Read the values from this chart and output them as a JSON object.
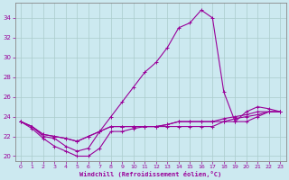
{
  "xlabel": "Windchill (Refroidissement éolien,°C)",
  "background_color": "#cce9f0",
  "line_color": "#990099",
  "grid_color": "#b8d8e0",
  "x_hours": [
    0,
    1,
    2,
    3,
    4,
    5,
    6,
    7,
    8,
    9,
    10,
    11,
    12,
    13,
    14,
    15,
    16,
    17,
    18,
    19,
    20,
    21,
    22,
    23
  ],
  "curve1": [
    23.5,
    23.0,
    22.0,
    21.8,
    21.0,
    20.5,
    20.8,
    22.5,
    24.0,
    25.5,
    27.0,
    28.5,
    29.5,
    31.0,
    33.0,
    33.5,
    34.8,
    34.0,
    26.5,
    23.5,
    24.5,
    25.0,
    24.8,
    24.5
  ],
  "curve2": [
    23.5,
    23.0,
    22.2,
    22.0,
    21.8,
    21.5,
    22.0,
    22.5,
    23.0,
    23.0,
    23.0,
    23.0,
    23.0,
    23.2,
    23.5,
    23.5,
    23.5,
    23.5,
    23.5,
    23.8,
    24.0,
    24.2,
    24.5,
    24.5
  ],
  "curve3": [
    23.5,
    23.0,
    22.2,
    22.0,
    21.8,
    21.5,
    22.0,
    22.5,
    23.0,
    23.0,
    23.0,
    23.0,
    23.0,
    23.2,
    23.5,
    23.5,
    23.5,
    23.5,
    23.8,
    24.0,
    24.2,
    24.5,
    24.5,
    24.5
  ],
  "curve4": [
    23.5,
    22.8,
    21.8,
    21.0,
    20.5,
    20.0,
    20.0,
    20.8,
    22.5,
    22.5,
    22.8,
    23.0,
    23.0,
    23.0,
    23.0,
    23.0,
    23.0,
    23.0,
    23.5,
    23.5,
    23.5,
    24.0,
    24.5,
    24.5
  ],
  "ylim": [
    19.5,
    35.5
  ],
  "xlim": [
    -0.5,
    23.5
  ],
  "yticks": [
    20,
    22,
    24,
    26,
    28,
    30,
    32,
    34
  ],
  "xticks": [
    0,
    1,
    2,
    3,
    4,
    5,
    6,
    7,
    8,
    9,
    10,
    11,
    12,
    13,
    14,
    15,
    16,
    17,
    18,
    19,
    20,
    21,
    22,
    23
  ]
}
